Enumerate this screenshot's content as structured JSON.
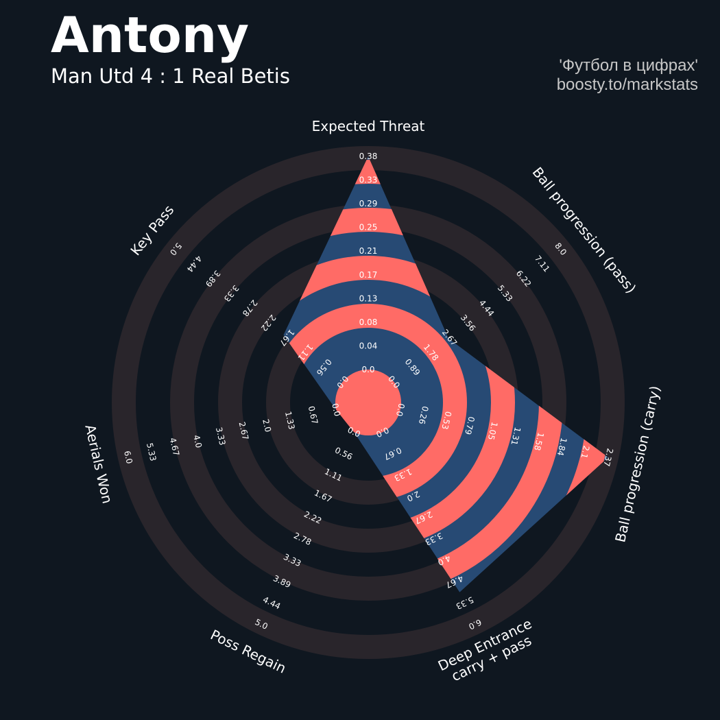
{
  "header": {
    "title": "Antony",
    "subtitle": "Man Utd 4 : 1 Real Betis",
    "credit_line1": "'Футбол в цифрах'",
    "credit_line2": "boosty.to/markstats"
  },
  "colors": {
    "background": "#0f1720",
    "ring_band": "#29252b",
    "polygon_fill": "#274a74",
    "polygon_alt": "#ff6b66",
    "text": "#ffffff",
    "credit_text": "#c7c7c7"
  },
  "chart_data": {
    "type": "radar",
    "title": "Antony",
    "parameters": [
      {
        "label": "Expected Threat",
        "value": 0.38,
        "ticks": [
          "0.0",
          "0.04",
          "0.08",
          "0.13",
          "0.17",
          "0.21",
          "0.25",
          "0.29",
          "0.33",
          "0.38"
        ]
      },
      {
        "label": "Ball progression (pass)",
        "value": 2.62,
        "ticks": [
          "0.0",
          "0.89",
          "1.78",
          "2.67",
          "3.56",
          "4.44",
          "5.33",
          "6.22",
          "7.11",
          "8.0"
        ]
      },
      {
        "label": "Ball progression (carry)",
        "value": 2.37,
        "ticks": [
          "0.0",
          "0.26",
          "0.53",
          "0.79",
          "1.05",
          "1.31",
          "1.58",
          "1.84",
          "2.1",
          "2.37"
        ]
      },
      {
        "label": "Deep Entrance\ncarry + pass",
        "value": 5.0,
        "ticks": [
          "0.0",
          "0.67",
          "1.33",
          "2.0",
          "2.67",
          "3.33",
          "4.0",
          "4.67",
          "5.33",
          "6.0"
        ]
      },
      {
        "label": "Poss Regain",
        "value": 0.0,
        "ticks": [
          "0.0",
          "0.56",
          "1.11",
          "1.67",
          "2.22",
          "2.78",
          "3.33",
          "3.89",
          "4.44",
          "5.0"
        ]
      },
      {
        "label": "Aerials Won",
        "value": 0.0,
        "ticks": [
          "0.0",
          "0.67",
          "1.33",
          "2.0",
          "2.67",
          "3.33",
          "4.0",
          "4.67",
          "5.33",
          "6.0"
        ]
      },
      {
        "label": "Key Pass",
        "value": 1.77,
        "ticks": [
          "0.0",
          "0.56",
          "1.11",
          "1.67",
          "2.22",
          "2.78",
          "3.33",
          "3.89",
          "4.44",
          "5.0"
        ]
      }
    ]
  }
}
